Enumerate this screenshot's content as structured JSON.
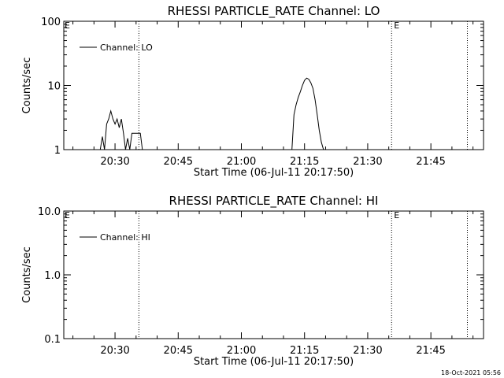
{
  "chart_data": [
    {
      "type": "line",
      "title": "RHESSI PARTICLE_RATE Channel: LO",
      "xlabel": "Start Time (06-Jul-11 20:17:50)",
      "ylabel": "Counts/sec",
      "yscale": "log",
      "ylim": [
        1,
        100
      ],
      "xlim": [
        "20:17:50",
        "21:57:30"
      ],
      "x_ticks": [
        "20:30",
        "20:45",
        "21:00",
        "21:15",
        "21:30",
        "21:45"
      ],
      "y_ticks": [
        "1",
        "10",
        "100"
      ],
      "markers": [
        {
          "x": "20:35:40",
          "label": ""
        },
        {
          "x": "21:35:40",
          "label": "E"
        },
        {
          "x": "21:53:40",
          "label": ""
        }
      ],
      "edge_label": "E",
      "legend": {
        "position": "top-left",
        "entries": [
          "Channel: LO"
        ]
      },
      "series": [
        {
          "name": "Channel: LO",
          "x": [
            "20:26:30",
            "20:27:00",
            "20:27:30",
            "20:28:00",
            "20:28:30",
            "20:29:00",
            "20:29:30",
            "20:30:00",
            "20:30:30",
            "20:31:00",
            "20:31:30",
            "20:32:00",
            "20:32:30",
            "20:33:00",
            "20:33:30",
            "20:34:00",
            "20:34:30",
            "20:35:00",
            "20:35:30",
            "20:36:00",
            "20:36:30",
            "21:12:00",
            "21:12:30",
            "21:13:00",
            "21:13:30",
            "21:14:00",
            "21:14:30",
            "21:15:00",
            "21:15:30",
            "21:16:00",
            "21:16:30",
            "21:17:00",
            "21:17:30",
            "21:18:00",
            "21:18:30",
            "21:19:00",
            "21:19:30"
          ],
          "y": [
            1,
            1.6,
            1,
            2.5,
            3,
            4,
            3,
            2.5,
            3,
            2.2,
            3,
            1.8,
            1,
            1.5,
            1,
            1.8,
            1.8,
            1.8,
            1.8,
            1.8,
            1,
            1,
            3.5,
            5,
            6.5,
            8,
            10,
            12,
            13,
            12.5,
            11,
            9,
            6,
            3.5,
            2,
            1.3,
            1
          ],
          "breaks_after": [
            20
          ]
        }
      ]
    },
    {
      "type": "line",
      "title": "RHESSI PARTICLE_RATE Channel: HI",
      "xlabel": "Start Time (06-Jul-11 20:17:50)",
      "ylabel": "Counts/sec",
      "yscale": "log",
      "ylim": [
        0.1,
        10
      ],
      "xlim": [
        "20:17:50",
        "21:57:30"
      ],
      "x_ticks": [
        "20:30",
        "20:45",
        "21:00",
        "21:15",
        "21:30",
        "21:45"
      ],
      "y_ticks": [
        "0.1",
        "1.0",
        "10.0"
      ],
      "markers": [
        {
          "x": "20:35:40",
          "label": ""
        },
        {
          "x": "21:35:40",
          "label": "E"
        },
        {
          "x": "21:53:40",
          "label": ""
        }
      ],
      "edge_label": "E",
      "legend": {
        "position": "top-left",
        "entries": [
          "Channel: HI"
        ]
      },
      "series": [
        {
          "name": "Channel: HI",
          "x": [],
          "y": []
        }
      ]
    }
  ],
  "timestamp": "18-Oct-2021 05:56"
}
